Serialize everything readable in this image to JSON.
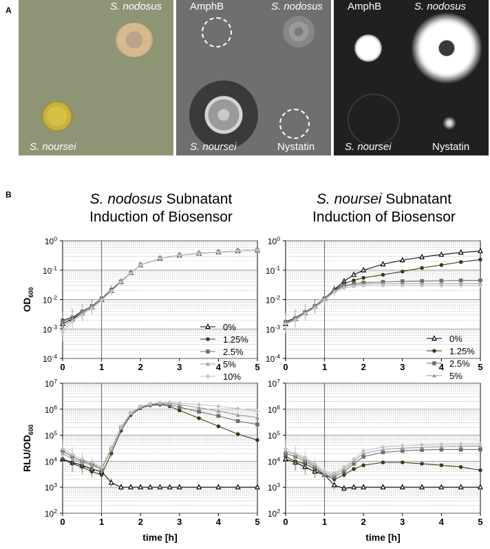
{
  "panel_labels": {
    "a": "A",
    "b": "B"
  },
  "photos": {
    "left": {
      "top_right": "S. nodosus",
      "bottom_left": "S. noursei"
    },
    "middle": {
      "top_left": "AmphB",
      "top_right": "S. nodosus",
      "bottom_left": "S. noursei",
      "bottom_right": "Nystatin"
    },
    "right": {
      "top_left": "AmphB",
      "top_right": "S. nodosus",
      "bottom_left": "S. noursei",
      "bottom_right": "Nystatin"
    }
  },
  "titles": {
    "left": {
      "species": "S. nodosus",
      "rest1": " Subnatant",
      "line2": "Induction of Biosensor"
    },
    "right": {
      "species": "S. noursei",
      "rest1": " Subnatant",
      "line2": "Induction of Biosensor"
    }
  },
  "legend": [
    "0%",
    "1.25%",
    "2.5%",
    "5%",
    "10%"
  ],
  "colors": {
    "s0": "#000000",
    "s1": "#3b3b18",
    "s2": "#6e6e6e",
    "s3": "#9a9a9a",
    "s4": "#c2c2c2"
  },
  "chart_data": [
    {
      "type": "line",
      "id": "od_nodosus",
      "ylabel": "OD600",
      "xlabel": "",
      "log_y": true,
      "xlim": [
        0,
        5
      ],
      "ylim": [
        0.0001,
        1
      ],
      "x_ticks": [
        "0",
        "1",
        "2",
        "3",
        "4",
        "5"
      ],
      "y_ticks": [
        "10-4",
        "10-3",
        "10-2",
        "10-1",
        "100"
      ],
      "x": [
        0,
        0.25,
        0.5,
        0.75,
        1,
        1.25,
        1.5,
        1.75,
        2,
        2.5,
        3,
        3.5,
        4,
        4.5,
        5
      ],
      "series": [
        {
          "name": "0%",
          "values": [
            0.0015,
            0.0022,
            0.0035,
            0.0055,
            0.01,
            0.02,
            0.04,
            0.08,
            0.15,
            0.25,
            0.32,
            0.37,
            0.41,
            0.45,
            0.48
          ]
        },
        {
          "name": "1.25%",
          "values": [
            0.002,
            0.0025,
            0.004,
            0.006,
            0.011,
            0.022,
            0.042,
            0.08,
            0.15,
            0.25,
            0.32,
            0.37,
            0.41,
            0.45,
            0.48
          ]
        },
        {
          "name": "2.5%",
          "values": [
            0.0018,
            0.0024,
            0.0038,
            0.006,
            0.011,
            0.021,
            0.041,
            0.08,
            0.15,
            0.25,
            0.32,
            0.37,
            0.41,
            0.45,
            0.48
          ]
        },
        {
          "name": "5%",
          "values": [
            0.0012,
            0.002,
            0.0035,
            0.0055,
            0.01,
            0.02,
            0.04,
            0.08,
            0.15,
            0.25,
            0.32,
            0.37,
            0.41,
            0.45,
            0.48
          ]
        },
        {
          "name": "10%",
          "values": [
            0.0008,
            0.0018,
            0.003,
            0.005,
            0.0095,
            0.019,
            0.039,
            0.078,
            0.15,
            0.25,
            0.32,
            0.37,
            0.41,
            0.45,
            0.48
          ]
        }
      ]
    },
    {
      "type": "line",
      "id": "od_noursei",
      "ylabel": "",
      "xlabel": "",
      "log_y": true,
      "xlim": [
        0,
        5
      ],
      "ylim": [
        0.0001,
        1
      ],
      "x_ticks": [
        "0",
        "1",
        "2",
        "3",
        "4",
        "5"
      ],
      "y_ticks": [
        "10-4",
        "10-3",
        "10-2",
        "10-1",
        "100"
      ],
      "x": [
        0,
        0.25,
        0.5,
        0.75,
        1,
        1.25,
        1.5,
        1.75,
        2,
        2.5,
        3,
        3.5,
        4,
        4.5,
        5
      ],
      "series": [
        {
          "name": "0%",
          "values": [
            0.0015,
            0.0022,
            0.0035,
            0.006,
            0.011,
            0.022,
            0.042,
            0.07,
            0.1,
            0.16,
            0.22,
            0.28,
            0.34,
            0.4,
            0.45
          ]
        },
        {
          "name": "1.25%",
          "values": [
            0.0018,
            0.0024,
            0.0038,
            0.006,
            0.011,
            0.021,
            0.035,
            0.045,
            0.055,
            0.07,
            0.09,
            0.12,
            0.15,
            0.19,
            0.23
          ]
        },
        {
          "name": "2.5%",
          "values": [
            0.0017,
            0.0023,
            0.0037,
            0.006,
            0.011,
            0.02,
            0.03,
            0.035,
            0.038,
            0.04,
            0.042,
            0.043,
            0.044,
            0.045,
            0.045
          ]
        },
        {
          "name": "5%",
          "values": [
            0.0016,
            0.0022,
            0.0035,
            0.0055,
            0.01,
            0.019,
            0.028,
            0.032,
            0.034,
            0.035,
            0.035,
            0.035,
            0.035,
            0.035,
            0.035
          ]
        },
        {
          "name": "10%",
          "values": [
            0.0015,
            0.002,
            0.0033,
            0.0052,
            0.0095,
            0.018,
            0.025,
            0.028,
            0.03,
            0.03,
            0.03,
            0.03,
            0.03,
            0.03,
            0.03
          ]
        }
      ]
    },
    {
      "type": "line",
      "id": "rlu_nodosus",
      "ylabel": "RLU/OD600",
      "xlabel": "time [h]",
      "log_y": true,
      "xlim": [
        0,
        5
      ],
      "ylim": [
        100,
        10000000
      ],
      "x_ticks": [
        "0",
        "1",
        "2",
        "3",
        "4",
        "5"
      ],
      "y_ticks": [
        "102",
        "103",
        "104",
        "105",
        "106",
        "107"
      ],
      "x": [
        0,
        0.25,
        0.5,
        0.75,
        1,
        1.25,
        1.5,
        1.75,
        2,
        2.25,
        2.5,
        2.75,
        3,
        3.5,
        4,
        4.5,
        5
      ],
      "series": [
        {
          "name": "0%",
          "values": [
            12000,
            9000,
            7000,
            5000,
            4000,
            1500,
            1000,
            1000,
            1000,
            1000,
            1000,
            1000,
            1000,
            1000,
            1000,
            1000,
            1000
          ]
        },
        {
          "name": "1.25%",
          "values": [
            12000,
            8000,
            6000,
            4000,
            3000,
            20000,
            150000,
            600000,
            1100000,
            1400000,
            1500000,
            1300000,
            900000,
            450000,
            220000,
            110000,
            65000
          ]
        },
        {
          "name": "2.5%",
          "values": [
            25000,
            15000,
            10000,
            8000,
            5000,
            30000,
            200000,
            700000,
            1200000,
            1500000,
            1600000,
            1500000,
            1200000,
            800000,
            550000,
            350000,
            260000
          ]
        },
        {
          "name": "5%",
          "values": [
            20000,
            12000,
            9000,
            7000,
            5000,
            28000,
            190000,
            680000,
            1200000,
            1500000,
            1700000,
            1700000,
            1500000,
            1150000,
            850000,
            600000,
            480000
          ]
        },
        {
          "name": "10%",
          "values": [
            30000,
            18000,
            12000,
            9000,
            6000,
            32000,
            210000,
            720000,
            1300000,
            1600000,
            1800000,
            1800000,
            1700000,
            1500000,
            1300000,
            1050000,
            850000
          ]
        }
      ]
    },
    {
      "type": "line",
      "id": "rlu_noursei",
      "ylabel": "",
      "xlabel": "time [h]",
      "log_y": true,
      "xlim": [
        0,
        5
      ],
      "ylim": [
        100,
        10000000
      ],
      "x_ticks": [
        "0",
        "1",
        "2",
        "3",
        "4",
        "5"
      ],
      "y_ticks": [
        "102",
        "103",
        "104",
        "105",
        "106",
        "107"
      ],
      "x": [
        0,
        0.25,
        0.5,
        0.75,
        1,
        1.25,
        1.5,
        1.75,
        2,
        2.5,
        3,
        3.5,
        4,
        4.5,
        5
      ],
      "series": [
        {
          "name": "0%",
          "values": [
            12000,
            9000,
            6000,
            4000,
            3000,
            1200,
            900,
            1000,
            1000,
            1000,
            1000,
            1000,
            1000,
            1000,
            1000
          ]
        },
        {
          "name": "1.25%",
          "values": [
            15000,
            10000,
            8000,
            5000,
            3000,
            2000,
            3000,
            5000,
            7000,
            9000,
            9000,
            8000,
            7000,
            6000,
            4500
          ]
        },
        {
          "name": "2.5%",
          "values": [
            20000,
            15000,
            10000,
            6000,
            3000,
            2500,
            4000,
            8000,
            15000,
            22000,
            25000,
            27000,
            28000,
            28000,
            28000
          ]
        },
        {
          "name": "5%",
          "values": [
            25000,
            18000,
            12000,
            7000,
            3500,
            3000,
            5000,
            10000,
            20000,
            28000,
            32000,
            34000,
            36000,
            37000,
            38000
          ]
        },
        {
          "name": "10%",
          "values": [
            30000,
            20000,
            14000,
            8000,
            4000,
            3500,
            6000,
            12000,
            25000,
            35000,
            40000,
            43000,
            45000,
            46000,
            46000
          ]
        }
      ]
    }
  ]
}
